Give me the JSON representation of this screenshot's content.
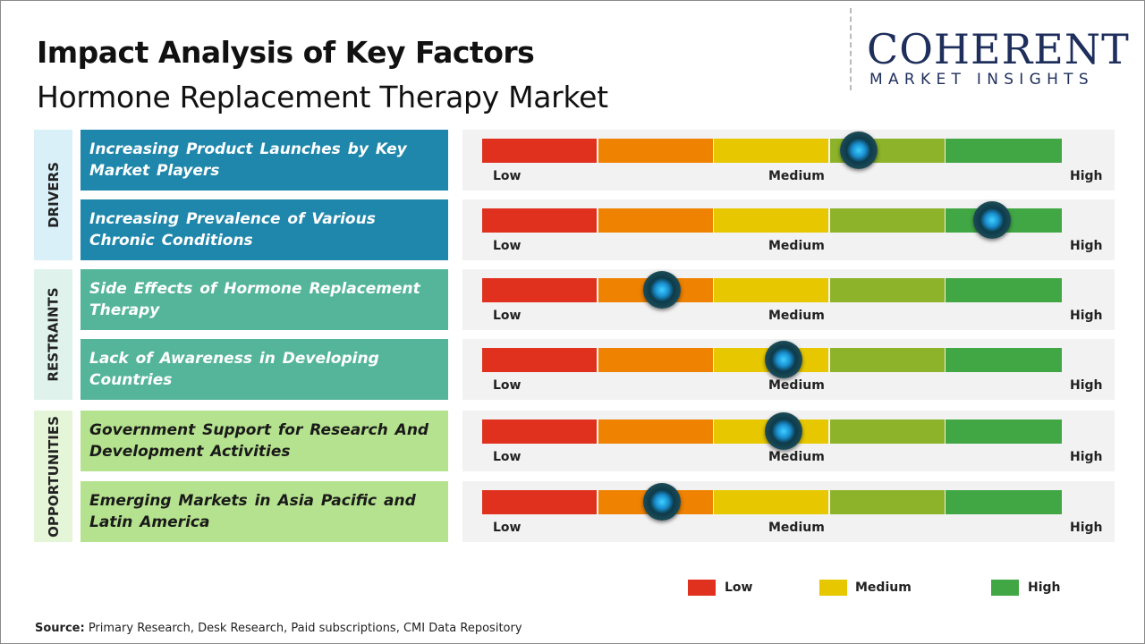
{
  "title": "Impact Analysis of Key Factors",
  "subtitle": "Hormone Replacement Therapy Market",
  "logo": {
    "line1": "COHERENT",
    "line2": "MARKET INSIGHTS"
  },
  "colors": {
    "drivers_side": "#d9f0f8",
    "drivers": "#1f87ab",
    "restraints_side": "#e0f2ec",
    "restraints": "#55b59a",
    "opportunities_side": "#e4f5d8",
    "opportunities": "#b5e28e",
    "scale": [
      "#e0301e",
      "#ef8200",
      "#e7c800",
      "#8db32a",
      "#41a745"
    ]
  },
  "chart_data": {
    "type": "gauge",
    "scale_labels": [
      "Low",
      "Medium",
      "High"
    ],
    "categories": [
      {
        "name": "DRIVERS",
        "factors": [
          {
            "label": "Increasing Product Launches by Key Market Players",
            "impact": 0.65
          },
          {
            "label": "Increasing Prevalence of Various Chronic Conditions",
            "impact": 0.88
          }
        ]
      },
      {
        "name": "RESTRAINTS",
        "factors": [
          {
            "label": "Side Effects of Hormone Replacement Therapy",
            "impact": 0.31
          },
          {
            "label": "Lack of Awareness in Developing Countries",
            "impact": 0.52
          }
        ]
      },
      {
        "name": "OPPORTUNITIES",
        "factors": [
          {
            "label": "Government Support for Research And Development Activities",
            "impact": 0.52
          },
          {
            "label": "Emerging Markets in Asia Pacific and Latin America",
            "impact": 0.31
          }
        ]
      }
    ],
    "legend": [
      {
        "label": "Low",
        "color": "#e0301e"
      },
      {
        "label": "Medium",
        "color": "#e7c800"
      },
      {
        "label": "High",
        "color": "#41a745"
      }
    ]
  },
  "source": {
    "label": "Source:",
    "text": " Primary Research, Desk Research, Paid subscriptions, CMI Data Repository"
  }
}
